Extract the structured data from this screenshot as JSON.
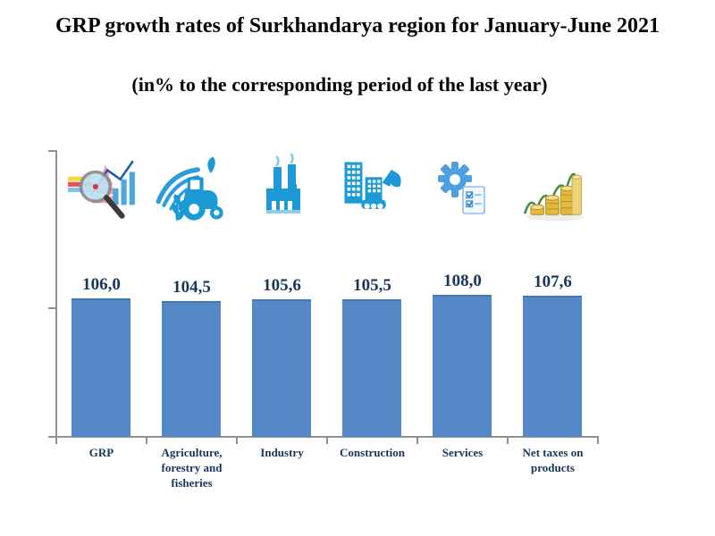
{
  "header": {
    "title": "GRP growth rates of Surkhandarya region for January-June 2021",
    "subtitle": "(in% to the corresponding period of the last year)"
  },
  "chart_data": {
    "type": "bar",
    "title": "GRP growth rates of Surkhandarya region for January-June 2021",
    "subtitle": "(in% to the corresponding period of the last year)",
    "categories": [
      "GRP",
      "Agriculture, forestry and fisheries",
      "Industry",
      "Construction",
      "Services",
      "Net taxes on products"
    ],
    "values": [
      106.0,
      104.5,
      105.6,
      105.5,
      108.0,
      107.6
    ],
    "value_labels": [
      "106,0",
      "104,5",
      "105,6",
      "105,5",
      "108,0",
      "107,6"
    ],
    "value_format": "decimal-comma",
    "icons": [
      "magnifier-bar-chart-icon",
      "tractor-agriculture-icon",
      "factory-industry-icon",
      "excavator-construction-icon",
      "gear-checklist-icon",
      "coins-growth-icon"
    ],
    "colors": {
      "bar": "#5588C7",
      "bar_top_edge": "#4478BB",
      "value_label": "#17365D",
      "category_label": "#17365D",
      "axis": "#909090",
      "icon_blue": "#1C9AD6"
    },
    "grid": false,
    "legend": "none",
    "baseline_axis": "x",
    "y_tick_labels_shown": false
  }
}
